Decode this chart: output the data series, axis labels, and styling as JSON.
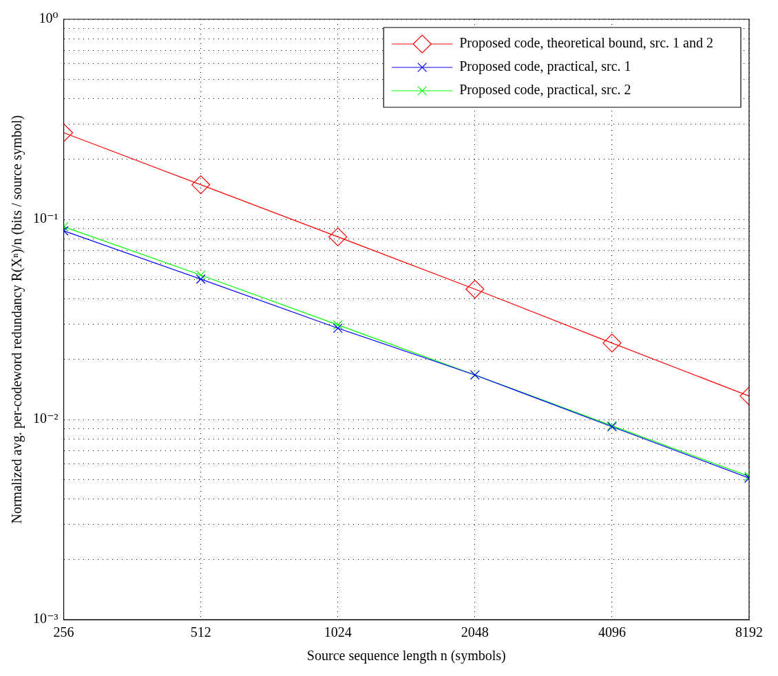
{
  "chart_data": {
    "type": "line",
    "xlabel": "Source sequence length n (symbols)",
    "ylabel": "Normalized avg. per-codeword redundancy R(Xⁿ)/n (bits / source symbol)",
    "x": [
      256,
      512,
      1024,
      2048,
      4096,
      8192
    ],
    "log": "xy",
    "grid": true,
    "legend": "top right",
    "xlim": [
      256,
      8192
    ],
    "xticks": [
      256,
      512,
      1024,
      2048,
      4096,
      8192
    ],
    "ylim": [
      0.001,
      1
    ],
    "yticks": [
      {
        "value": 0.001,
        "label": "10⁻³"
      },
      {
        "value": 0.002,
        "label": null
      },
      {
        "value": 0.003,
        "label": null
      },
      {
        "value": 0.004,
        "label": null
      },
      {
        "value": 0.005,
        "label": null
      },
      {
        "value": 0.006,
        "label": null
      },
      {
        "value": 0.007,
        "label": null
      },
      {
        "value": 0.008,
        "label": null
      },
      {
        "value": 0.009,
        "label": null
      },
      {
        "value": 0.01,
        "label": "10⁻²"
      },
      {
        "value": 0.02,
        "label": null
      },
      {
        "value": 0.03,
        "label": null
      },
      {
        "value": 0.04,
        "label": null
      },
      {
        "value": 0.05,
        "label": null
      },
      {
        "value": 0.06,
        "label": null
      },
      {
        "value": 0.07,
        "label": null
      },
      {
        "value": 0.08,
        "label": null
      },
      {
        "value": 0.09,
        "label": null
      },
      {
        "value": 0.1,
        "label": "10⁻¹"
      },
      {
        "value": 0.2,
        "label": null
      },
      {
        "value": 0.3,
        "label": null
      },
      {
        "value": 0.4,
        "label": null
      },
      {
        "value": 0.5,
        "label": null
      },
      {
        "value": 0.6,
        "label": null
      },
      {
        "value": 0.7,
        "label": null
      },
      {
        "value": 0.8,
        "label": null
      },
      {
        "value": 0.9,
        "label": null
      },
      {
        "value": 1,
        "label": "10⁰"
      }
    ],
    "series": [
      {
        "name": "Proposed code, theoretical bound, src. 1 and 2",
        "color": "#ff0000",
        "marker": "diamond",
        "values": [
          0.271,
          0.149,
          0.0818,
          0.0448,
          0.0241,
          0.0131
        ]
      },
      {
        "name": "Proposed code, practical, src. 1",
        "color": "#0000ff",
        "marker": "cross",
        "values": [
          0.0877,
          0.0503,
          0.0286,
          0.0167,
          0.0092,
          0.0051
        ]
      },
      {
        "name": "Proposed code, practical, src. 2",
        "color": "#00ff00",
        "marker": "cross",
        "values": [
          0.0919,
          0.0527,
          0.0297,
          0.0167,
          0.0093,
          0.0052
        ]
      }
    ]
  }
}
